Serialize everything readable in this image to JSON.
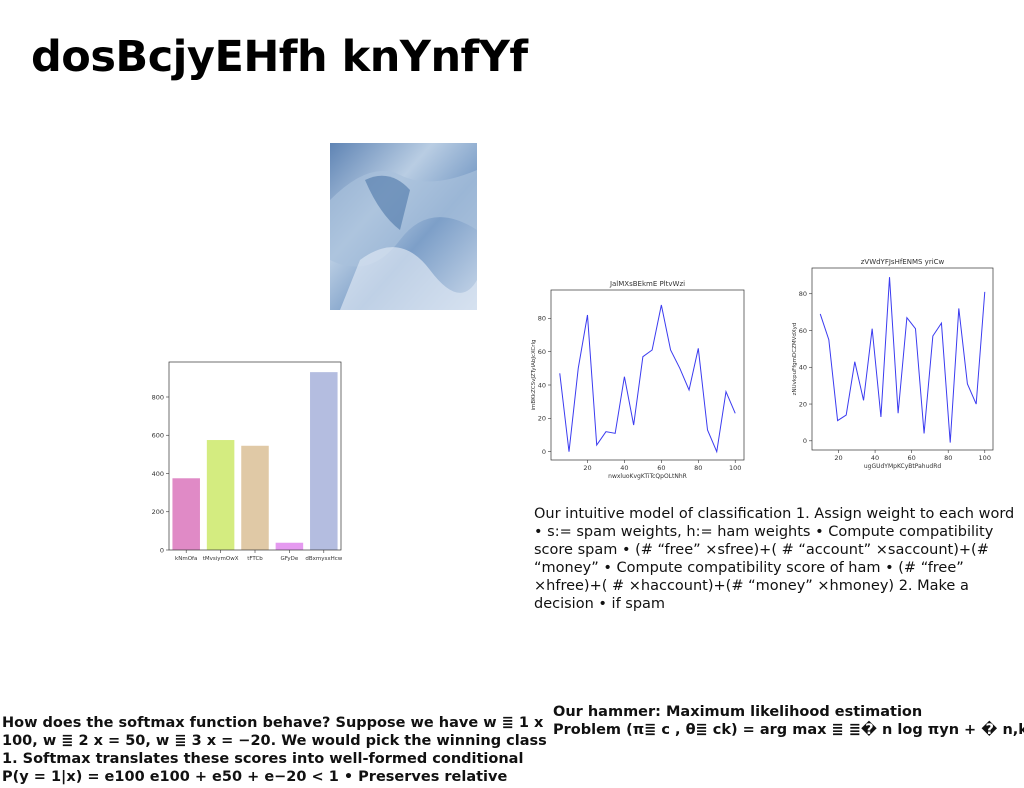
{
  "title": "dosBcjyEHfh knYnfYf",
  "paragraph": "Our intuitive model of classification 1. Assign weight to each word • s:= spam weights, h:= ham weights • Compute compatibility score spam • (# “free” ×sfree)+( # “account” ×saccount)+(# “money” • Compute compatibility score of ham • (# “free” ×hfree)+( # ×haccount)+(# “money” ×hmoney) 2. Make a decision • if spam",
  "softmax_text": "How does the softmax function behave? Suppose we have w ≣ 1 x 100, w ≣ 2 x = 50, w ≣ 3 x = −20. We would pick the winning class 1. Softmax translates these scores into well-formed conditional P(y = 1|x) = e100 e100 + e50 + e−20 < 1 • Preserves relative",
  "hammer_heading": "Our hammer: Maximum likelihood estimation",
  "hammer_text": "Problem (π≣ c , θ≣ ck) = arg max ≣ ≣� n log πyn + � n,k",
  "chart_data": [
    {
      "type": "bar",
      "categories": [
        "kNmOfa",
        "tMvsiymOwX",
        "tFTCb",
        "GFyDe",
        "dBxmysxHcw"
      ],
      "values": [
        375,
        575,
        545,
        38,
        930
      ],
      "colors": [
        "#e08ac6",
        "#d4ec80",
        "#e0c9a6",
        "#e59af0",
        "#b4bde0"
      ],
      "ylim": [
        0,
        983
      ],
      "yticks": [
        0,
        200,
        400,
        600,
        800
      ]
    },
    {
      "type": "line",
      "title": "JalMXsBEkmE PltvWzi",
      "x_label": "nwxluoKvgKTiTcQpOLtNhR",
      "y_label": "imBKkZCSvJZTyIAbJcXCrlg",
      "color": "#3b3bf0",
      "x": [
        5,
        10,
        15,
        20,
        25,
        30,
        35,
        40,
        45,
        50,
        55,
        60,
        65,
        70,
        75,
        80,
        85,
        90,
        95,
        100
      ],
      "values": [
        47,
        0,
        50,
        82,
        4,
        12,
        11,
        45,
        16,
        57,
        61,
        88,
        61,
        50,
        37,
        62,
        13,
        0,
        36,
        23
      ],
      "xlim": [
        0.25,
        104.75
      ],
      "ylim": [
        -5,
        97
      ],
      "xticks": [
        20,
        40,
        60,
        80,
        100
      ],
      "yticks": [
        0,
        20,
        40,
        60,
        80
      ]
    },
    {
      "type": "line",
      "title": "zVWdYFJsHfENMS yriCw",
      "x_label": "ugGUdYMpKCyBtPahudRd",
      "y_label": "zNUvkpuFfgmDCZMVdXyd",
      "color": "#3b3bf0",
      "x": [
        10,
        14.7,
        19.5,
        24.2,
        28.9,
        33.7,
        38.4,
        43.2,
        47.9,
        52.6,
        57.4,
        62.1,
        66.8,
        71.6,
        76.3,
        81.1,
        85.8,
        90.5,
        95.3,
        100
      ],
      "values": [
        69,
        55,
        11,
        14,
        43,
        22,
        61,
        13,
        89,
        15,
        67,
        61,
        4,
        57,
        64,
        -1,
        72,
        31,
        20,
        81
      ],
      "xlim": [
        5.5,
        104.5
      ],
      "ylim": [
        -5,
        94
      ],
      "xticks": [
        20,
        40,
        60,
        80,
        100
      ],
      "yticks": [
        0,
        20,
        40,
        60,
        80
      ]
    }
  ]
}
